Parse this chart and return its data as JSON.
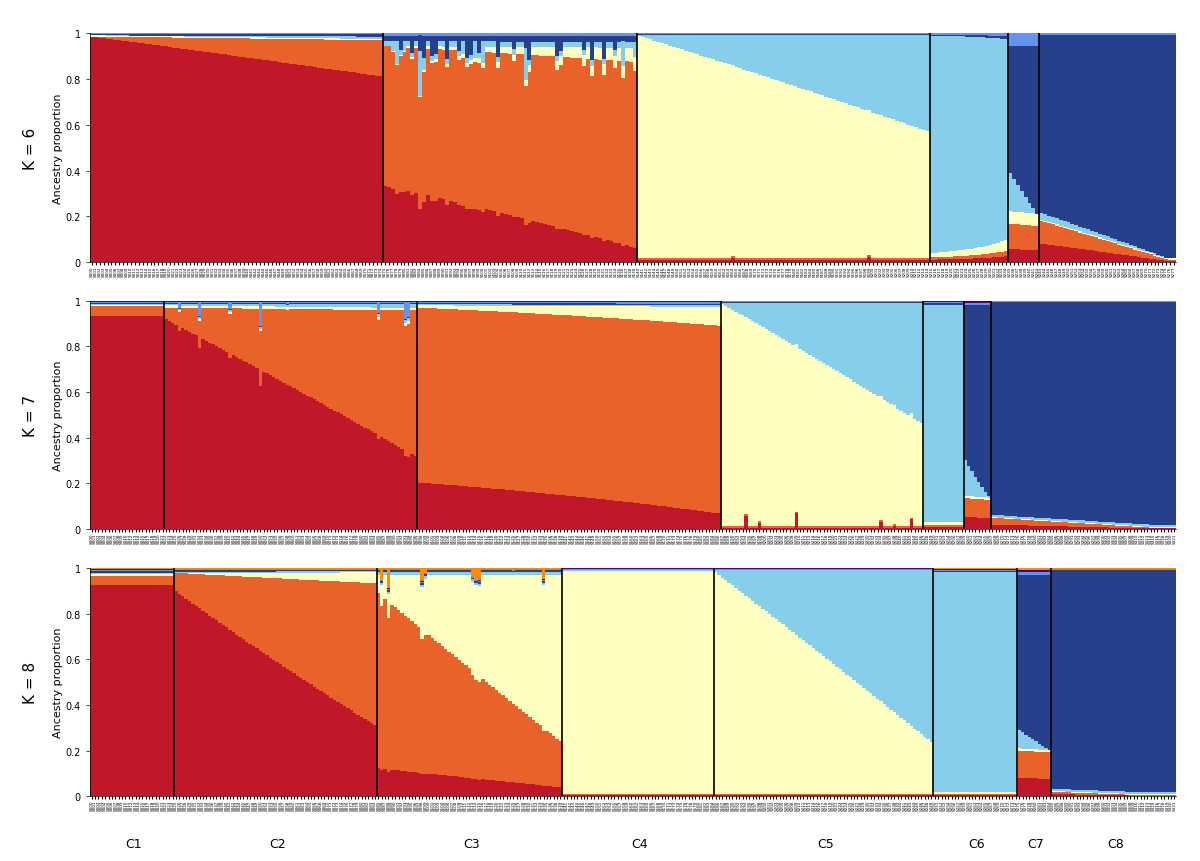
{
  "colors": {
    "dark_red": "#C0182A",
    "orange_red": "#E8622A",
    "light_yellow": "#FFFFC0",
    "sky_blue": "#87CEEB",
    "dark_blue": "#27408B",
    "navy": "#1A237E",
    "white": "#FFFFFF"
  },
  "k6": {
    "colors": [
      "#C0182A",
      "#E8622A",
      "#FFFFC0",
      "#87CEEB",
      "#27408B",
      "#6495ED"
    ],
    "seg_sizes": [
      75,
      65,
      75,
      20,
      8,
      35
    ],
    "dividers": [
      75,
      140,
      215,
      235,
      243
    ],
    "cluster_labels": [
      "C1",
      "C2",
      "C3",
      "C4",
      "C5",
      "C6"
    ]
  },
  "k7": {
    "colors": [
      "#C0182A",
      "#E8622A",
      "#FFFFC0",
      "#87CEEB",
      "#27408B",
      "#6495ED",
      "#4B0082"
    ],
    "seg_sizes": [
      22,
      75,
      90,
      60,
      12,
      8,
      55
    ],
    "dividers": [
      22,
      97,
      187,
      247,
      259,
      267
    ],
    "cluster_labels": [
      "C1",
      "C2",
      "C3",
      "C4",
      "C5",
      "C6",
      "C7"
    ]
  },
  "k8": {
    "colors": [
      "#C0182A",
      "#E8622A",
      "#FFFFC0",
      "#87CEEB",
      "#27408B",
      "#6495ED",
      "#4B0082",
      "#FF8C00"
    ],
    "seg_sizes": [
      25,
      60,
      55,
      45,
      65,
      25,
      10,
      37
    ],
    "dividers": [
      25,
      85,
      140,
      185,
      250,
      275,
      285
    ],
    "cluster_labels": [
      "C1",
      "C2",
      "C3",
      "C4",
      "C5",
      "C6",
      "C7",
      "C8"
    ]
  },
  "ylabel": "Ancestry proportion",
  "yticks": [
    0,
    0.2,
    0.4,
    0.6,
    0.8,
    1
  ],
  "figsize": [
    12.0,
    8.62
  ],
  "dpi": 100
}
